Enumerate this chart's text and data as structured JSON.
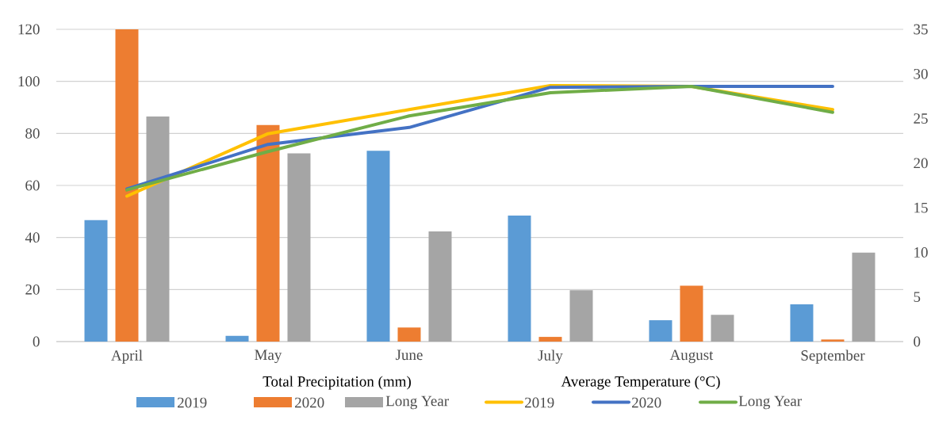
{
  "chart_data": {
    "type": "bar",
    "categories": [
      "April",
      "May",
      "June",
      "July",
      "August",
      "September"
    ],
    "series": [
      {
        "name": "2019",
        "color": "#5b9bd5",
        "values": [
          46.7,
          2.2,
          73.3,
          48.4,
          8.2,
          14.3
        ]
      },
      {
        "name": "2020",
        "color": "#ed7d31",
        "values": [
          120,
          83.2,
          5.4,
          1.8,
          21.5,
          0.8
        ]
      },
      {
        "name": "Long Year",
        "color": "#a5a5a5",
        "values": [
          86.5,
          72.3,
          42.3,
          19.7,
          10.3,
          34.2
        ]
      },
      {
        "name": "2019",
        "type": "line",
        "axis": "y2",
        "color": "#ffc000",
        "values": [
          16.3,
          23.3,
          26.0,
          28.7,
          28.6,
          26.0
        ]
      },
      {
        "name": "2020",
        "type": "line",
        "axis": "y2",
        "color": "#4472c4",
        "values": [
          17.1,
          22.1,
          24.0,
          28.5,
          28.6,
          28.6
        ]
      },
      {
        "name": "Long Year",
        "type": "line",
        "axis": "y2",
        "color": "#70ad47",
        "values": [
          17.0,
          21.3,
          25.3,
          27.9,
          28.6,
          25.7
        ]
      }
    ],
    "ylim": [
      0,
      120
    ],
    "yticks": [
      0,
      20,
      40,
      60,
      80,
      100,
      120
    ],
    "y2lim": [
      0,
      35
    ],
    "y2ticks": [
      0,
      5,
      10,
      15,
      20,
      25,
      30,
      35
    ],
    "annotations": [
      "Total Precipitation  (mm)",
      "Average Temperature (°C)"
    ],
    "grid": "y",
    "legend": "bottom"
  }
}
